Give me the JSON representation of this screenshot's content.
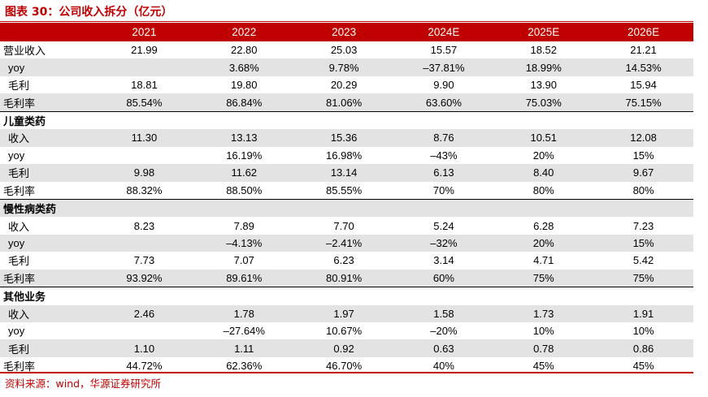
{
  "title": "图表 30：公司收入拆分（亿元）",
  "header": [
    "",
    "2021",
    "2022",
    "2023",
    "2024E",
    "2025E",
    "2026E"
  ],
  "rows": [
    {
      "type": "data",
      "indent": false,
      "shade": false,
      "cells": [
        "营业收入",
        "21.99",
        "22.80",
        "25.03",
        "15.57",
        "18.52",
        "21.21"
      ]
    },
    {
      "type": "data",
      "indent": true,
      "shade": true,
      "cells": [
        "yoy",
        "",
        "3.68%",
        "9.78%",
        "–37.81%",
        "18.99%",
        "14.53%"
      ]
    },
    {
      "type": "data",
      "indent": true,
      "shade": false,
      "cells": [
        "毛利",
        "18.81",
        "19.80",
        "20.29",
        "9.90",
        "13.90",
        "15.94"
      ]
    },
    {
      "type": "data",
      "indent": false,
      "shade": true,
      "cells": [
        "毛利率",
        "85.54%",
        "86.84%",
        "81.06%",
        "63.60%",
        "75.03%",
        "75.15%"
      ]
    },
    {
      "type": "section",
      "shade": false,
      "cells": [
        "儿童类药"
      ]
    },
    {
      "type": "data",
      "indent": true,
      "shade": true,
      "cells": [
        "收入",
        "11.30",
        "13.13",
        "15.36",
        "8.76",
        "10.51",
        "12.08"
      ]
    },
    {
      "type": "data",
      "indent": true,
      "shade": false,
      "cells": [
        "yoy",
        "",
        "16.19%",
        "16.98%",
        "–43%",
        "20%",
        "15%"
      ]
    },
    {
      "type": "data",
      "indent": true,
      "shade": true,
      "cells": [
        "毛利",
        "9.98",
        "11.62",
        "13.14",
        "6.13",
        "8.40",
        "9.67"
      ]
    },
    {
      "type": "data",
      "indent": false,
      "shade": false,
      "cells": [
        "毛利率",
        "88.32%",
        "88.50%",
        "85.55%",
        "70%",
        "80%",
        "80%"
      ]
    },
    {
      "type": "section",
      "shade": true,
      "cells": [
        "慢性病类药"
      ]
    },
    {
      "type": "data",
      "indent": true,
      "shade": false,
      "cells": [
        "收入",
        "8.23",
        "7.89",
        "7.70",
        "5.24",
        "6.28",
        "7.23"
      ]
    },
    {
      "type": "data",
      "indent": true,
      "shade": true,
      "cells": [
        "yoy",
        "",
        "–4.13%",
        "–2.41%",
        "–32%",
        "20%",
        "15%"
      ]
    },
    {
      "type": "data",
      "indent": true,
      "shade": false,
      "cells": [
        "毛利",
        "7.73",
        "7.07",
        "6.23",
        "3.14",
        "4.71",
        "5.42"
      ]
    },
    {
      "type": "data",
      "indent": false,
      "shade": true,
      "cells": [
        "毛利率",
        "93.92%",
        "89.61%",
        "80.91%",
        "60%",
        "75%",
        "75%"
      ]
    },
    {
      "type": "section",
      "shade": false,
      "cells": [
        "其他业务"
      ]
    },
    {
      "type": "data",
      "indent": true,
      "shade": true,
      "cells": [
        "收入",
        "2.46",
        "1.78",
        "1.97",
        "1.58",
        "1.73",
        "1.91"
      ]
    },
    {
      "type": "data",
      "indent": true,
      "shade": false,
      "cells": [
        "yoy",
        "",
        "–27.64%",
        "10.67%",
        "–20%",
        "10%",
        "10%"
      ]
    },
    {
      "type": "data",
      "indent": true,
      "shade": true,
      "cells": [
        "毛利",
        "1.10",
        "1.11",
        "0.92",
        "0.63",
        "0.78",
        "0.86"
      ]
    },
    {
      "type": "data",
      "indent": false,
      "shade": false,
      "cells": [
        "毛利率",
        "44.72%",
        "62.36%",
        "46.70%",
        "40%",
        "45%",
        "45%"
      ]
    }
  ],
  "source": "资料来源：wind，华源证券研究所",
  "colors": {
    "accent": "#c00000",
    "row_shade": "#e3e3e3"
  }
}
